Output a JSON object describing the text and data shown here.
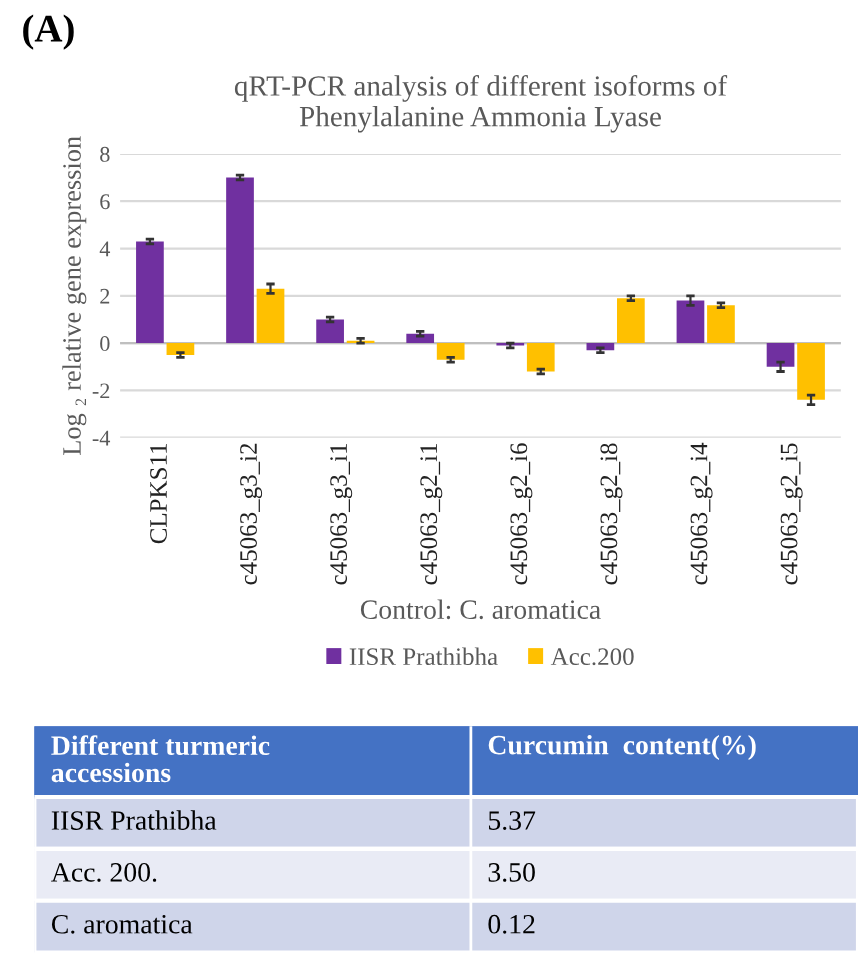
{
  "chart_data": [
    {
      "type": "bar",
      "title": "qRT-PCR analysis of different isoforms of\nPhenylalanine Ammonia Lyase",
      "ylabel": "Log ₂ relative gene expression",
      "xlabel": "Control: C. aromatica",
      "annotations": [
        "(A)"
      ],
      "categories": [
        "CLPKS11",
        "c45063_g3_i2",
        "c45063_g3_i1",
        "c45063_g2_i1",
        "c45063_g2_i6",
        "c45063_g2_i8",
        "c45063_g2_i4",
        "c45063_g2_i5"
      ],
      "series": [
        {
          "name": "IISR Prathibha",
          "color": "#7030a0",
          "values": [
            4.3,
            7.0,
            1.0,
            0.4,
            -0.1,
            -0.3,
            1.8,
            -1.0
          ],
          "errors": [
            0.1,
            0.1,
            0.1,
            0.1,
            0.1,
            0.1,
            0.2,
            0.2
          ]
        },
        {
          "name": "Acc.200",
          "color": "#ffc000",
          "values": [
            -0.5,
            2.3,
            0.1,
            -0.7,
            -1.2,
            1.9,
            1.6,
            -2.4
          ],
          "errors": [
            0.1,
            0.2,
            0.1,
            0.1,
            0.1,
            0.1,
            0.1,
            0.2
          ]
        }
      ],
      "ylim": [
        -4,
        8
      ],
      "yticks": [
        -4,
        -2,
        0,
        2,
        4,
        6,
        8
      ],
      "grid": "y",
      "legend": "bottom"
    },
    {
      "type": "other",
      "annotations": [
        "Different turmeric accessions",
        "Curcumin  content(%)",
        "IISR Prathibha",
        "5.37",
        "Acc. 200.",
        "3.50",
        "C. aromatica",
        "0.12"
      ]
    }
  ]
}
